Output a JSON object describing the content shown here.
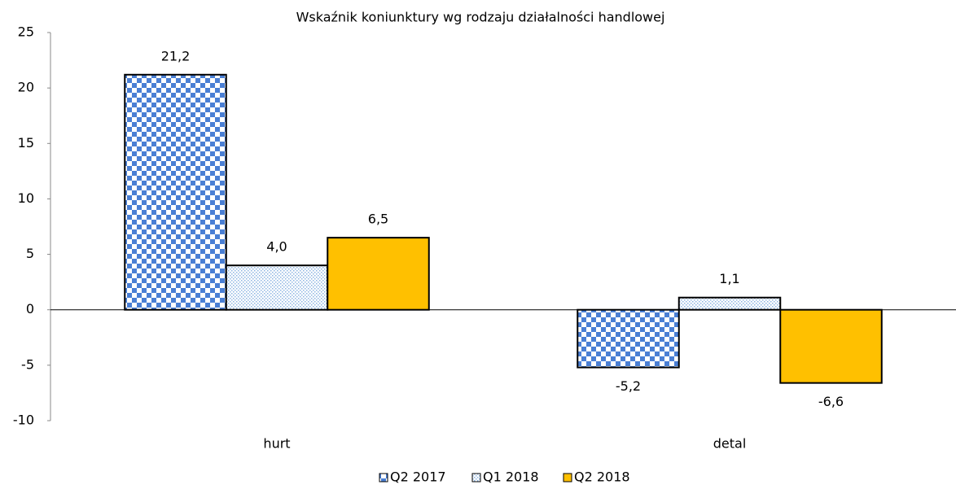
{
  "chart_data": {
    "type": "bar",
    "title": "Wskaźnik koniunktury wg rodzaju działalności handlowej",
    "categories": [
      "hurt",
      "detal"
    ],
    "series": [
      {
        "name": "Q2 2017",
        "color": "#4a7fd4",
        "pattern": "checker",
        "values": [
          21.2,
          -5.2
        ],
        "value_labels": [
          "21,2",
          "-5,2"
        ]
      },
      {
        "name": "Q1 2018",
        "color": "#8db4e2",
        "pattern": "dots",
        "values": [
          4.0,
          1.1
        ],
        "value_labels": [
          "4,0",
          "1,1"
        ]
      },
      {
        "name": "Q2 2018",
        "color": "#ffc000",
        "values": [
          6.5,
          -6.6
        ],
        "value_labels": [
          "6,5",
          "-6,6"
        ]
      }
    ],
    "ylim": [
      -10,
      25
    ],
    "yticks": [
      -10,
      -5,
      0,
      5,
      10,
      15,
      20,
      25
    ],
    "grid": false,
    "legend": "bottom"
  }
}
